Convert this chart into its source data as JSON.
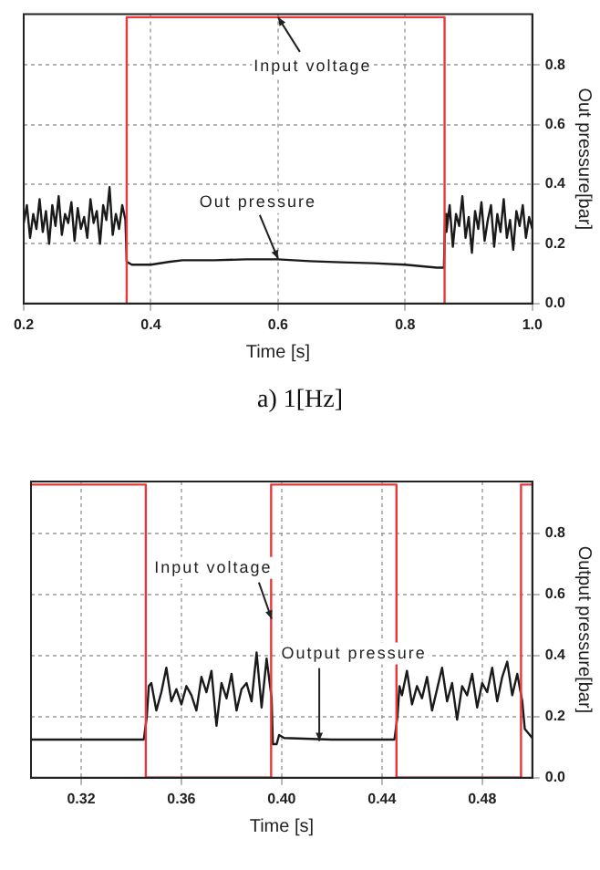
{
  "chart_data": [
    {
      "type": "line",
      "xlabel": "Time [s]",
      "ylabel": "Out pressure[bar]",
      "xlim": [
        0.2,
        1.0
      ],
      "xticks": [
        0.2,
        0.4,
        0.6,
        0.8,
        {
          "value": 1,
          "label": "1.0"
        }
      ],
      "ylim": [
        0,
        0.97
      ],
      "yticks": [
        {
          "value": 0,
          "label": "0.0"
        },
        0.2,
        0.4,
        0.6,
        0.8
      ],
      "grid": true,
      "marker": "none",
      "line_style": "solid",
      "series": [
        {
          "color": "#e8383a",
          "x": [
            0.362,
            0.362,
            0.862,
            0.862
          ],
          "values": [
            0,
            0.96,
            0.96,
            0
          ]
        },
        {
          "color": "#1a1a1a",
          "x": [
            0.2,
            0.205,
            0.21,
            0.215,
            0.22,
            0.225,
            0.23,
            0.235,
            0.24,
            0.245,
            0.25,
            0.255,
            0.26,
            0.265,
            0.27,
            0.275,
            0.28,
            0.285,
            0.29,
            0.295,
            0.3,
            0.305,
            0.31,
            0.315,
            0.32,
            0.325,
            0.33,
            0.335,
            0.34,
            0.345,
            0.35,
            0.355,
            0.36,
            0.362,
            0.37,
            0.4,
            0.43,
            0.45,
            0.5,
            0.55,
            0.6,
            0.65,
            0.7,
            0.75,
            0.8,
            0.85,
            0.861,
            0.863,
            0.865,
            0.87,
            0.875,
            0.88,
            0.885,
            0.89,
            0.895,
            0.9,
            0.905,
            0.91,
            0.915,
            0.92,
            0.925,
            0.93,
            0.935,
            0.94,
            0.945,
            0.95,
            0.955,
            0.96,
            0.965,
            0.97,
            0.975,
            0.98,
            0.985,
            0.99,
            0.995,
            1.0
          ],
          "values": [
            0.27,
            0.33,
            0.22,
            0.3,
            0.25,
            0.35,
            0.24,
            0.31,
            0.2,
            0.33,
            0.26,
            0.36,
            0.23,
            0.3,
            0.27,
            0.34,
            0.21,
            0.32,
            0.25,
            0.29,
            0.22,
            0.35,
            0.27,
            0.31,
            0.2,
            0.33,
            0.28,
            0.39,
            0.23,
            0.3,
            0.25,
            0.33,
            0.28,
            0.14,
            0.13,
            0.13,
            0.14,
            0.145,
            0.145,
            0.148,
            0.148,
            0.142,
            0.138,
            0.135,
            0.13,
            0.12,
            0.12,
            0.3,
            0.24,
            0.33,
            0.19,
            0.3,
            0.26,
            0.36,
            0.22,
            0.29,
            0.17,
            0.31,
            0.25,
            0.34,
            0.21,
            0.28,
            0.33,
            0.19,
            0.3,
            0.24,
            0.35,
            0.22,
            0.28,
            0.18,
            0.31,
            0.26,
            0.33,
            0.22,
            0.29,
            0.25
          ]
        }
      ],
      "annotations": [
        {
          "text": "Input voltage",
          "x": 0.6,
          "y": 0.96
        },
        {
          "text": "Out pressure",
          "x": 0.6,
          "y": 0.15
        },
        "a)  1[Hz]"
      ]
    },
    {
      "type": "line",
      "xlabel": "Time [s]",
      "ylabel": "Output pressure[bar]",
      "xlim": [
        0.3,
        0.5
      ],
      "xticks": [
        0.32,
        0.36,
        {
          "value": 0.4,
          "label": "0.40"
        },
        0.44,
        0.48
      ],
      "ylim": [
        0,
        0.97
      ],
      "yticks": [
        {
          "value": 0,
          "label": "0.0"
        },
        0.2,
        0.4,
        0.6,
        0.8
      ],
      "grid": true,
      "marker": "none",
      "line_style": "solid",
      "series": [
        {
          "color": "#e8383a",
          "x": [
            0.3,
            0.3458,
            0.3458,
            0.3958,
            0.3958,
            0.4458,
            0.4458,
            0.4955,
            0.4955,
            0.5
          ],
          "values": [
            0.96,
            0.96,
            0,
            0,
            0.96,
            0.96,
            0,
            0,
            0.96,
            0.96
          ]
        },
        {
          "color": "#1a1a1a",
          "x": [
            0.3,
            0.32,
            0.345,
            0.3462,
            0.347,
            0.348,
            0.35,
            0.352,
            0.354,
            0.356,
            0.358,
            0.36,
            0.362,
            0.364,
            0.366,
            0.368,
            0.37,
            0.372,
            0.374,
            0.376,
            0.378,
            0.38,
            0.382,
            0.384,
            0.386,
            0.388,
            0.39,
            0.392,
            0.394,
            0.396,
            0.3965,
            0.398,
            0.399,
            0.401,
            0.42,
            0.445,
            0.4462,
            0.447,
            0.448,
            0.45,
            0.452,
            0.454,
            0.456,
            0.458,
            0.46,
            0.462,
            0.464,
            0.466,
            0.468,
            0.47,
            0.472,
            0.474,
            0.476,
            0.478,
            0.48,
            0.482,
            0.484,
            0.486,
            0.488,
            0.49,
            0.492,
            0.494,
            0.496,
            0.497,
            0.5
          ],
          "values": [
            0.125,
            0.125,
            0.125,
            0.2,
            0.3,
            0.31,
            0.22,
            0.28,
            0.36,
            0.25,
            0.29,
            0.24,
            0.3,
            0.27,
            0.22,
            0.33,
            0.28,
            0.35,
            0.17,
            0.31,
            0.26,
            0.34,
            0.22,
            0.29,
            0.31,
            0.25,
            0.41,
            0.23,
            0.39,
            0.26,
            0.11,
            0.11,
            0.14,
            0.13,
            0.125,
            0.125,
            0.2,
            0.3,
            0.27,
            0.35,
            0.24,
            0.3,
            0.26,
            0.33,
            0.22,
            0.29,
            0.36,
            0.25,
            0.31,
            0.19,
            0.3,
            0.27,
            0.34,
            0.23,
            0.31,
            0.28,
            0.36,
            0.25,
            0.33,
            0.38,
            0.27,
            0.34,
            0.25,
            0.16,
            0.13
          ]
        }
      ],
      "annotations": [
        {
          "text": "Input voltage",
          "x": 0.396,
          "y": 0.52
        },
        {
          "text": "Output pressure",
          "x": 0.415,
          "y": 0.12
        }
      ]
    }
  ]
}
